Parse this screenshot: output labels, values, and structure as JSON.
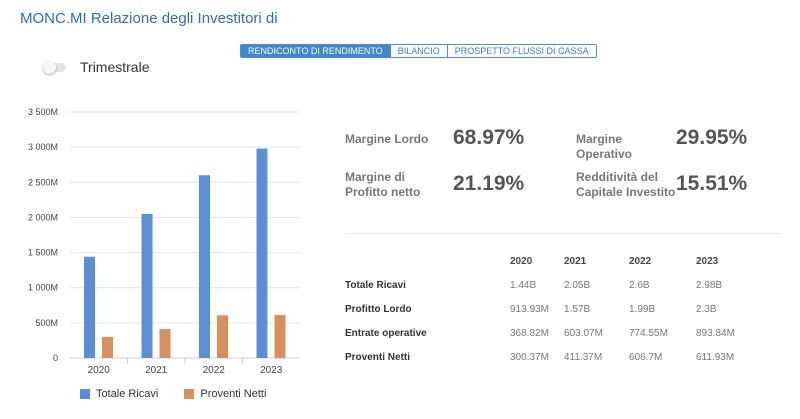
{
  "header": {
    "title": "MONC.MI Relazione degli Investitori di"
  },
  "tabs": [
    {
      "label": "RENDICONTO DI RENDIMENTO",
      "active": true
    },
    {
      "label": "BILANCIO",
      "active": false
    },
    {
      "label": "PROSPETTO FLUSSI DI CASSA",
      "active": false
    }
  ],
  "toggle": {
    "label": "Trimestrale",
    "on": false
  },
  "colors": {
    "accent": "#3f86d3",
    "series1": "#5a8fd8",
    "series2": "#d88f5c"
  },
  "chart_data": {
    "type": "bar",
    "categories": [
      "2020",
      "2021",
      "2022",
      "2023"
    ],
    "series": [
      {
        "name": "Totale Ricavi",
        "values": [
          1440,
          2050,
          2600,
          2980
        ]
      },
      {
        "name": "Proventi Netti",
        "values": [
          300.37,
          411.37,
          606.7,
          611.93
        ]
      }
    ],
    "ylim": [
      0,
      3500
    ],
    "yticks": [
      0,
      500,
      1000,
      1500,
      2000,
      2500,
      3000,
      3500
    ],
    "ytick_labels": [
      "0",
      "500M",
      "1 000M",
      "1 500M",
      "2 000M",
      "2 500M",
      "3 000M",
      "3 500M"
    ],
    "grid": true,
    "legend_position": "bottom-left"
  },
  "metrics": [
    {
      "label": "Margine Lordo",
      "value": "68.97%"
    },
    {
      "label": "Margine Operativo",
      "value": "29.95%"
    },
    {
      "label": "Margine di Profitto netto",
      "value": "21.19%"
    },
    {
      "label": "Redditività del Capitale Investito",
      "value": "15.51%"
    }
  ],
  "table": {
    "years": [
      "2020",
      "2021",
      "2022",
      "2023"
    ],
    "rows": [
      {
        "label": "Totale Ricavi",
        "values": [
          "1.44B",
          "2.05B",
          "2.6B",
          "2.98B"
        ]
      },
      {
        "label": "Profitto Lordo",
        "values": [
          "913.93M",
          "1.57B",
          "1.99B",
          "2.3B"
        ]
      },
      {
        "label": "Entrate operative",
        "values": [
          "368.82M",
          "603.07M",
          "774.55M",
          "893.84M"
        ]
      },
      {
        "label": "Proventi Netti",
        "values": [
          "300.37M",
          "411.37M",
          "606.7M",
          "611.93M"
        ]
      }
    ]
  }
}
